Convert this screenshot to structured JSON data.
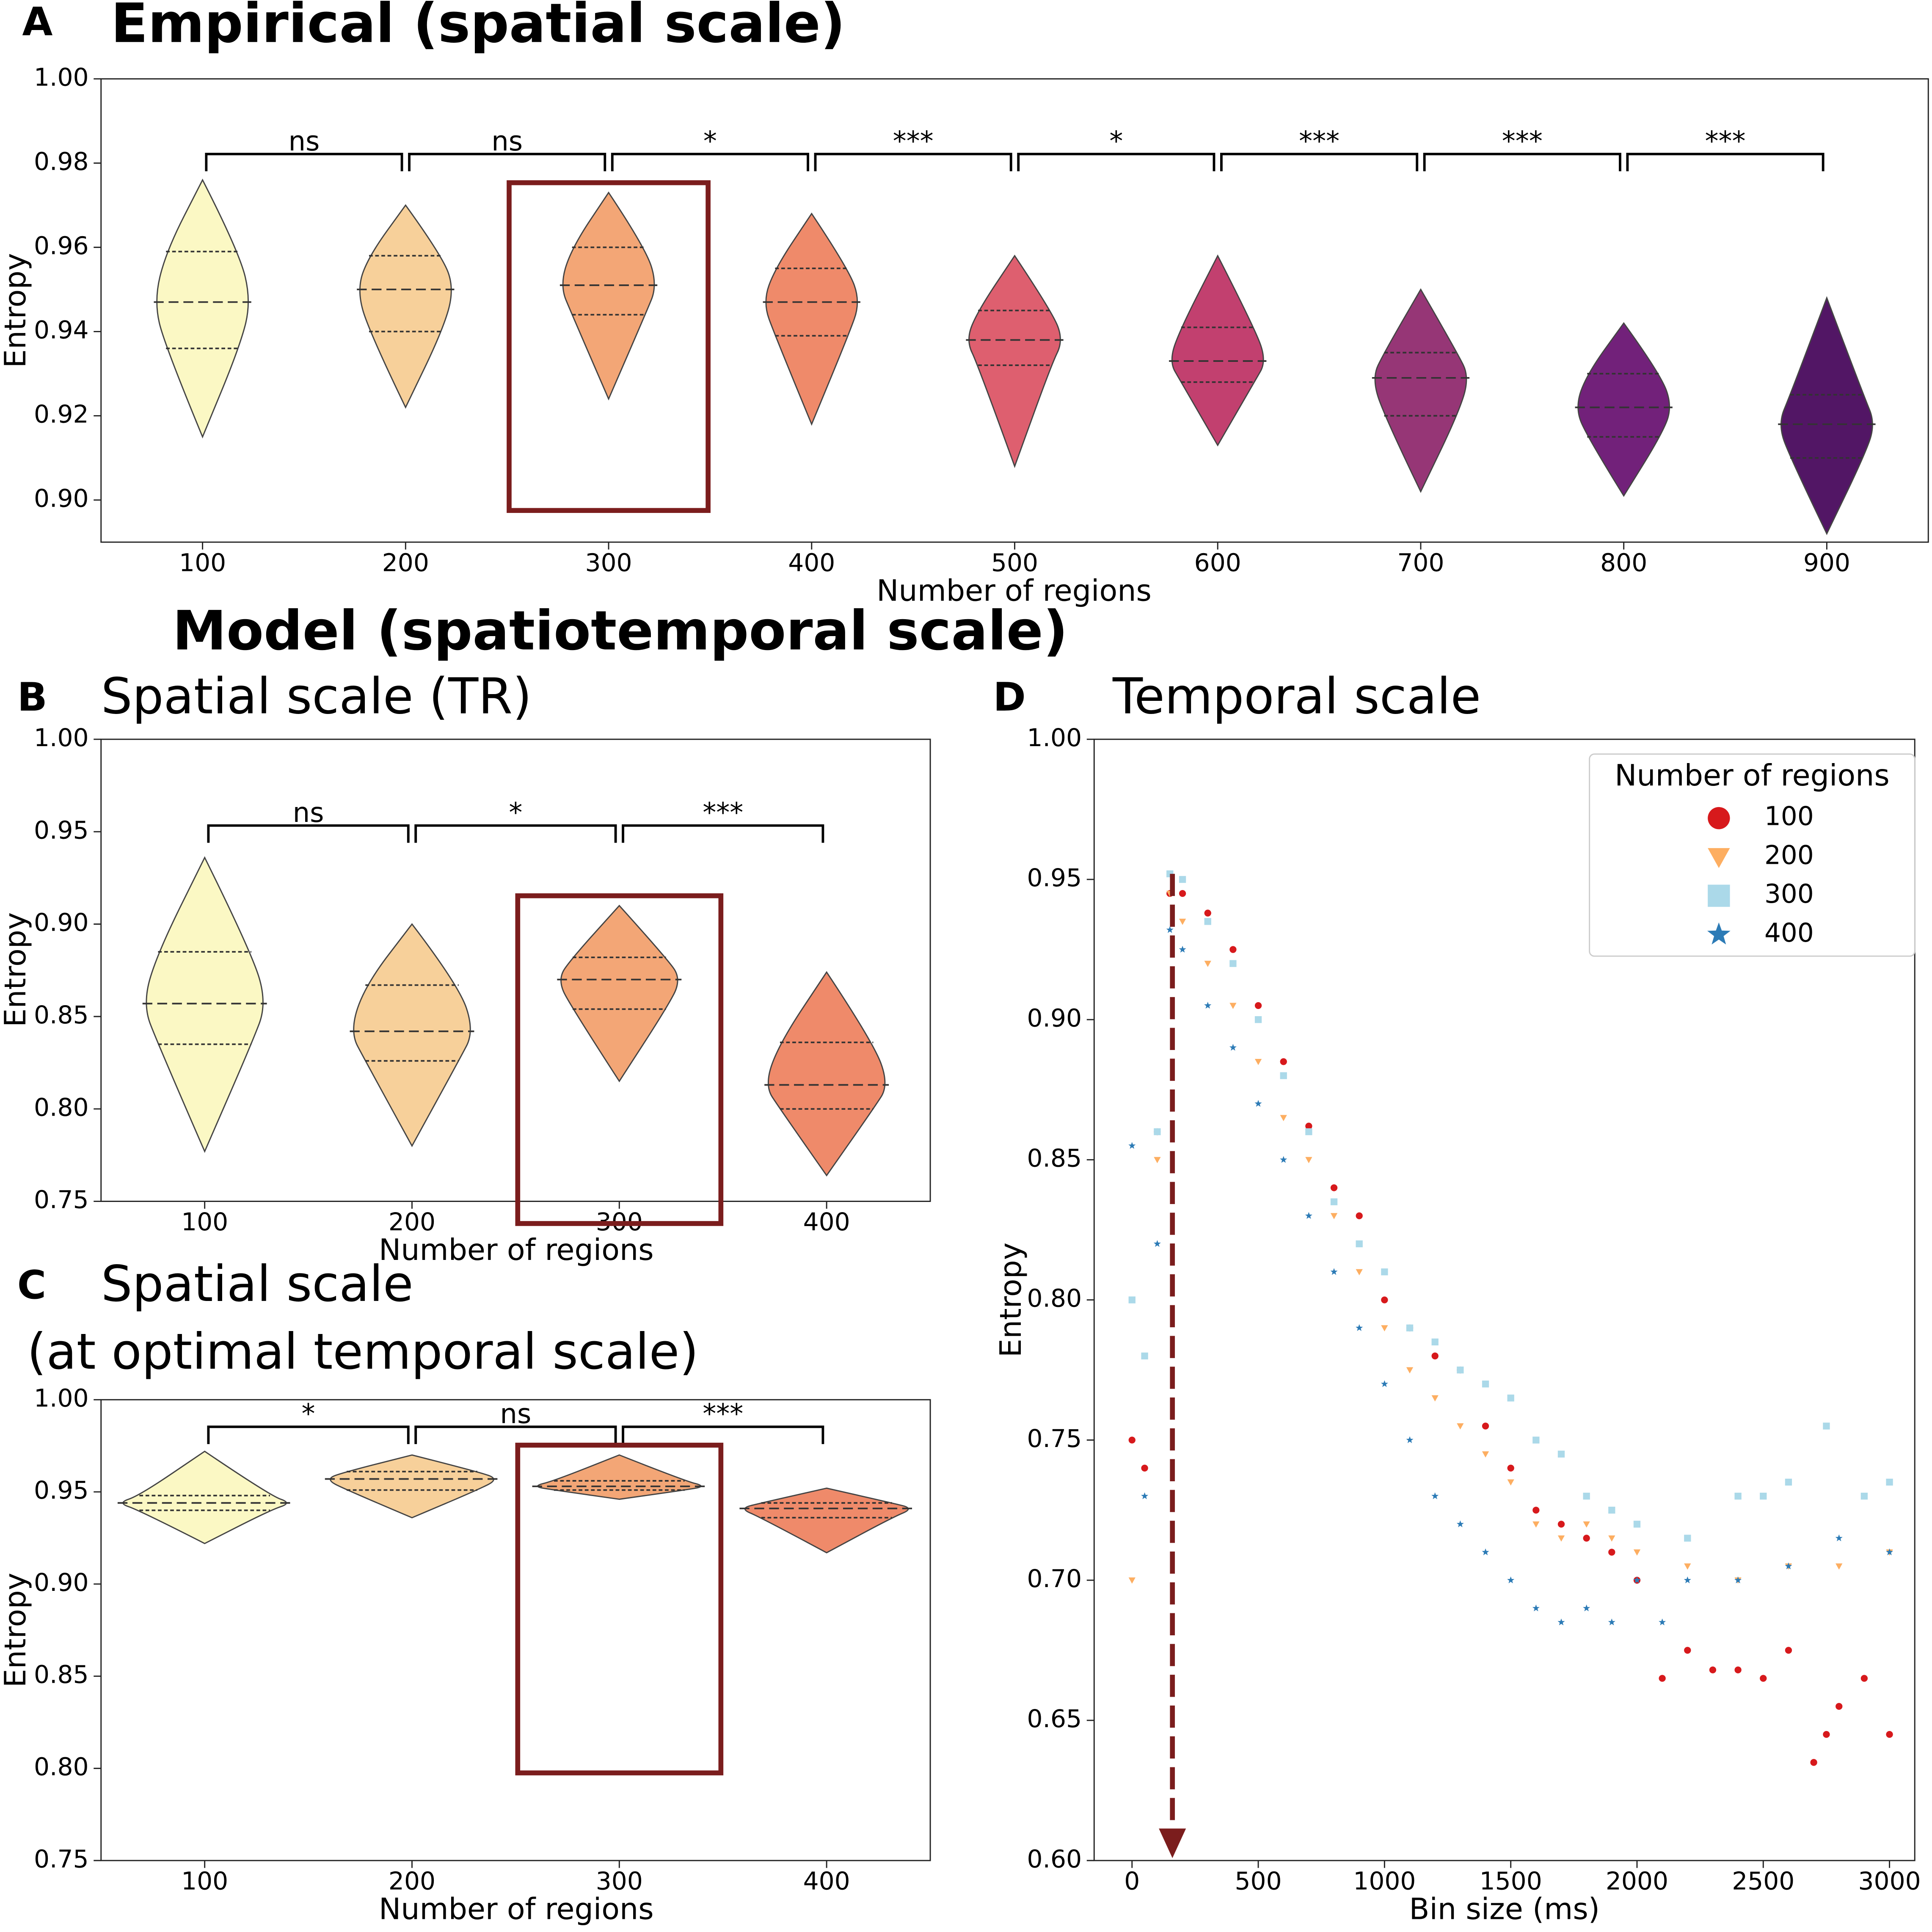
{
  "chart_data": [
    {
      "type": "violin",
      "panel": "A",
      "title": "Empirical (spatial scale)",
      "xlabel": "Number of regions",
      "ylabel": "Entropy",
      "categories": [
        "100",
        "200",
        "300",
        "400",
        "500",
        "600",
        "700",
        "800",
        "900"
      ],
      "min": [
        0.915,
        0.922,
        0.924,
        0.918,
        0.908,
        0.913,
        0.902,
        0.901,
        0.892
      ],
      "q1": [
        0.936,
        0.94,
        0.944,
        0.939,
        0.932,
        0.928,
        0.92,
        0.915,
        0.91
      ],
      "median": [
        0.947,
        0.95,
        0.951,
        0.947,
        0.938,
        0.933,
        0.929,
        0.922,
        0.918
      ],
      "q3": [
        0.959,
        0.958,
        0.96,
        0.955,
        0.945,
        0.941,
        0.935,
        0.93,
        0.925
      ],
      "max": [
        0.976,
        0.97,
        0.973,
        0.968,
        0.958,
        0.958,
        0.95,
        0.942,
        0.948
      ],
      "colors": [
        "#fbf8c4",
        "#f7d09a",
        "#f3a676",
        "#ef8a6a",
        "#de5f6f",
        "#c2406f",
        "#963676",
        "#72217a",
        "#521665"
      ],
      "significance": [
        "ns",
        "ns",
        "*",
        "***",
        "*",
        "***",
        "***",
        "***"
      ],
      "highlight": 2,
      "highlight_color": "#7b1d1d",
      "ylim": [
        0.89,
        1.0
      ],
      "yticks": [
        {
          "value": 0.9,
          "label": "0.90"
        },
        {
          "value": 0.92,
          "label": "0.92"
        },
        {
          "value": 0.94,
          "label": "0.94"
        },
        {
          "value": 0.96,
          "label": "0.96"
        },
        {
          "value": 0.98,
          "label": "0.98"
        },
        {
          "value": 1.0,
          "label": "1.00"
        }
      ]
    },
    {
      "type": "violin",
      "panel": "B",
      "supertitle": "Model (spatiotemporal scale)",
      "title": [
        "Spatial scale (TR)"
      ],
      "xlabel": "Number of regions",
      "ylabel": "Entropy",
      "categories": [
        "100",
        "200",
        "300",
        "400"
      ],
      "min": [
        0.777,
        0.78,
        0.815,
        0.764
      ],
      "q1": [
        0.835,
        0.826,
        0.854,
        0.8
      ],
      "median": [
        0.857,
        0.842,
        0.87,
        0.813
      ],
      "q3": [
        0.885,
        0.867,
        0.882,
        0.836
      ],
      "max": [
        0.936,
        0.9,
        0.91,
        0.874
      ],
      "colors": [
        "#fbf8c4",
        "#f7d09a",
        "#f3a676",
        "#ef8a6a"
      ],
      "significance": [
        "ns",
        "*",
        "***"
      ],
      "highlight": 2,
      "highlight_color": "#7b1d1d",
      "ylim": [
        0.75,
        1.0
      ],
      "yticks": [
        {
          "value": 0.75,
          "label": "0.75"
        },
        {
          "value": 0.8,
          "label": "0.80"
        },
        {
          "value": 0.85,
          "label": "0.85"
        },
        {
          "value": 0.9,
          "label": "0.90"
        },
        {
          "value": 0.95,
          "label": "0.95"
        },
        {
          "value": 1.0,
          "label": "1.00"
        }
      ]
    },
    {
      "type": "violin",
      "panel": "C",
      "title": [
        "Spatial scale",
        "(at optimal temporal scale)"
      ],
      "xlabel": "Number of regions",
      "ylabel": "Entropy",
      "categories": [
        "100",
        "200",
        "300",
        "400"
      ],
      "min": [
        0.922,
        0.936,
        0.946,
        0.917
      ],
      "q1": [
        0.94,
        0.951,
        0.951,
        0.936
      ],
      "median": [
        0.944,
        0.957,
        0.953,
        0.941
      ],
      "q3": [
        0.948,
        0.961,
        0.956,
        0.944
      ],
      "max": [
        0.972,
        0.97,
        0.97,
        0.952
      ],
      "colors": [
        "#fbf8c4",
        "#f7d09a",
        "#f3a676",
        "#ef8a6a"
      ],
      "significance": [
        "*",
        "ns",
        "***"
      ],
      "highlight": 2,
      "highlight_color": "#7b1d1d",
      "ylim": [
        0.75,
        1.0
      ],
      "yticks": [
        {
          "value": 0.75,
          "label": "0.75"
        },
        {
          "value": 0.8,
          "label": "0.80"
        },
        {
          "value": 0.85,
          "label": "0.85"
        },
        {
          "value": 0.9,
          "label": "0.90"
        },
        {
          "value": 0.95,
          "label": "0.95"
        },
        {
          "value": 1.0,
          "label": "1.00"
        }
      ]
    },
    {
      "type": "scatter",
      "panel": "D",
      "title": [
        "Temporal scale"
      ],
      "xlabel": "Bin size (ms)",
      "ylabel": "Entropy",
      "legend_title": "Number of regions",
      "legend": "upper right",
      "annotation_x": 160,
      "annotation_color": "#7b1d1d",
      "xlim": [
        -150,
        3100
      ],
      "xticks": [
        0,
        500,
        1000,
        1500,
        2000,
        2500,
        3000
      ],
      "ylim": [
        0.6,
        1.0
      ],
      "yticks": [
        {
          "value": 0.6,
          "label": "0.60"
        },
        {
          "value": 0.65,
          "label": "0.65"
        },
        {
          "value": 0.7,
          "label": "0.70"
        },
        {
          "value": 0.75,
          "label": "0.75"
        },
        {
          "value": 0.8,
          "label": "0.80"
        },
        {
          "value": 0.85,
          "label": "0.85"
        },
        {
          "value": 0.9,
          "label": "0.90"
        },
        {
          "value": 0.95,
          "label": "0.95"
        },
        {
          "value": 1.0,
          "label": "1.00"
        }
      ],
      "series": [
        {
          "name": "100",
          "color": "#d7191c",
          "marker": "o",
          "x": [
            0,
            50,
            100,
            150,
            200,
            300,
            400,
            500,
            600,
            700,
            800,
            900,
            1000,
            1100,
            1200,
            1300,
            1400,
            1500,
            1600,
            1700,
            1800,
            1900,
            2000,
            2100,
            2200,
            2300,
            2400,
            2500,
            2600,
            2700,
            2750,
            2800,
            2900,
            3000
          ],
          "values": [
            0.75,
            0.74,
            0.86,
            0.945,
            0.945,
            0.938,
            0.925,
            0.905,
            0.885,
            0.862,
            0.84,
            0.83,
            0.8,
            0.79,
            0.78,
            0.775,
            0.755,
            0.74,
            0.725,
            0.72,
            0.715,
            0.71,
            0.7,
            0.665,
            0.675,
            0.668,
            0.668,
            0.665,
            0.675,
            0.635,
            0.645,
            0.655,
            0.665,
            0.645
          ]
        },
        {
          "name": "200",
          "color": "#fdae61",
          "marker": "v",
          "x": [
            0,
            50,
            100,
            150,
            200,
            300,
            400,
            500,
            600,
            700,
            800,
            900,
            1000,
            1100,
            1200,
            1300,
            1400,
            1500,
            1600,
            1700,
            1800,
            1900,
            2000,
            2200,
            2400,
            2600,
            2800,
            3000
          ],
          "values": [
            0.7,
            0.78,
            0.85,
            0.945,
            0.935,
            0.92,
            0.905,
            0.885,
            0.865,
            0.85,
            0.83,
            0.81,
            0.79,
            0.775,
            0.765,
            0.755,
            0.745,
            0.735,
            0.72,
            0.715,
            0.72,
            0.715,
            0.71,
            0.705,
            0.7,
            0.705,
            0.705,
            0.71
          ]
        },
        {
          "name": "300",
          "color": "#abd9e9",
          "marker": "s",
          "x": [
            0,
            50,
            100,
            150,
            200,
            300,
            400,
            500,
            600,
            700,
            800,
            900,
            1000,
            1100,
            1200,
            1300,
            1400,
            1500,
            1600,
            1700,
            1800,
            1900,
            2000,
            2200,
            2400,
            2500,
            2600,
            2750,
            2900,
            3000
          ],
          "values": [
            0.8,
            0.78,
            0.86,
            0.952,
            0.95,
            0.935,
            0.92,
            0.9,
            0.88,
            0.86,
            0.835,
            0.82,
            0.81,
            0.79,
            0.785,
            0.775,
            0.77,
            0.765,
            0.75,
            0.745,
            0.73,
            0.725,
            0.72,
            0.715,
            0.73,
            0.73,
            0.735,
            0.755,
            0.73,
            0.735
          ]
        },
        {
          "name": "400",
          "color": "#2c7bb6",
          "marker": "*",
          "x": [
            0,
            50,
            100,
            150,
            200,
            300,
            400,
            500,
            600,
            700,
            800,
            900,
            1000,
            1100,
            1200,
            1300,
            1400,
            1500,
            1600,
            1700,
            1800,
            1900,
            2000,
            2100,
            2200,
            2400,
            2600,
            2800,
            3000
          ],
          "values": [
            0.855,
            0.73,
            0.82,
            0.932,
            0.925,
            0.905,
            0.89,
            0.87,
            0.85,
            0.83,
            0.81,
            0.79,
            0.77,
            0.75,
            0.73,
            0.72,
            0.71,
            0.7,
            0.69,
            0.685,
            0.69,
            0.685,
            0.7,
            0.685,
            0.7,
            0.7,
            0.705,
            0.715,
            0.71
          ]
        }
      ]
    }
  ]
}
